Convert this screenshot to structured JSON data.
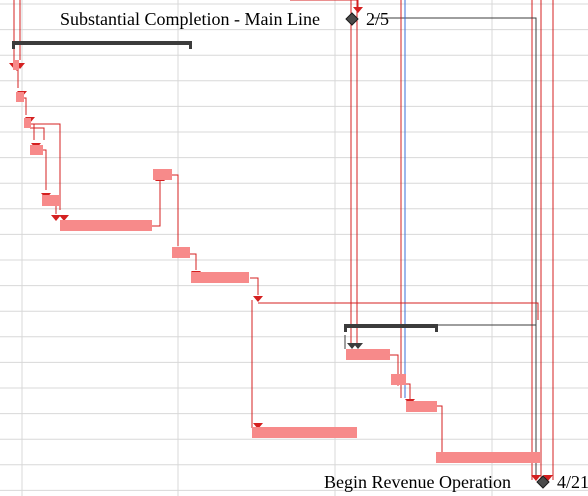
{
  "milestones": [
    {
      "name": "Substantial Completion - Main Line",
      "date": "2/5"
    },
    {
      "name": "Begin Revenue Operation",
      "date": "4/21"
    }
  ],
  "colors": {
    "task_bar": "#f78a8a",
    "critical_link": "#d42020",
    "summary_bar": "#3c3c3c",
    "baseline_link": "#3a6fd8",
    "gridline": "#d8d8d8",
    "milestone": "#4a4a4a"
  }
}
